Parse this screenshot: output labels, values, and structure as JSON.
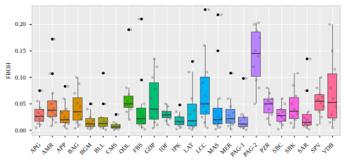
{
  "chart_data": {
    "type": "boxplot",
    "y_label": "FROH",
    "categories": [
      "APG",
      "AMR",
      "APP",
      "BAG",
      "BGM",
      "BLL",
      "CMS",
      "ODL",
      "FBS",
      "GDP",
      "IDF",
      "IPK",
      "LAT",
      "LCC",
      "MAS",
      "MER",
      "PAG-1",
      "PAG-2",
      "PZR",
      "SBC",
      "SBK",
      "SAR",
      "SPV",
      "VDB"
    ],
    "colors": [
      "#F8766D",
      "#F07F4D",
      "#E58700",
      "#D89000",
      "#C99800",
      "#A3A500",
      "#8FAA00",
      "#39B600",
      "#00BA38",
      "#00BF74",
      "#00C08B",
      "#00C0AF",
      "#00BCD8",
      "#00B0F6",
      "#00A5FF",
      "#619CFF",
      "#9590FF",
      "#B983FF",
      "#D376FF",
      "#E76BF3",
      "#F763E0",
      "#FF62BC",
      "#FF6C91",
      "#FF6A98"
    ],
    "values": [
      [
        0.005,
        0.01,
        0.013,
        0.018,
        0.022,
        0.025,
        0.028,
        0.033,
        0.038,
        0.042,
        0.055,
        0.075
      ],
      [
        0.008,
        0.015,
        0.02,
        0.025,
        0.03,
        0.035,
        0.038,
        0.042,
        0.05,
        0.055,
        0.07,
        0.107,
        0.172
      ],
      [
        0.003,
        0.008,
        0.012,
        0.015,
        0.018,
        0.02,
        0.025,
        0.033,
        0.04,
        0.06,
        0.083
      ],
      [
        0.004,
        0.01,
        0.015,
        0.022,
        0.03,
        0.035,
        0.045,
        0.052,
        0.07,
        0.088,
        0.1
      ],
      [
        0.002,
        0.004,
        0.005,
        0.008,
        0.01,
        0.012,
        0.015,
        0.018,
        0.025,
        0.04,
        0.05
      ],
      [
        0.001,
        0.004,
        0.006,
        0.009,
        0.012,
        0.014,
        0.018,
        0.025,
        0.05,
        0.108
      ],
      [
        0.001,
        0.002,
        0.003,
        0.005,
        0.006,
        0.007,
        0.009,
        0.011,
        0.015,
        0.03
      ],
      [
        0.02,
        0.035,
        0.04,
        0.045,
        0.048,
        0.05,
        0.055,
        0.06,
        0.068,
        0.08,
        0.19
      ],
      [
        0.002,
        0.006,
        0.01,
        0.013,
        0.018,
        0.022,
        0.027,
        0.033,
        0.05,
        0.095,
        0.21
      ],
      [
        0.004,
        0.01,
        0.015,
        0.025,
        0.035,
        0.04,
        0.06,
        0.078,
        0.1,
        0.12,
        0.135
      ],
      [
        0.01,
        0.018,
        0.022,
        0.026,
        0.028,
        0.03,
        0.033,
        0.036,
        0.045,
        0.05
      ],
      [
        0.002,
        0.006,
        0.009,
        0.012,
        0.015,
        0.018,
        0.022,
        0.026,
        0.035,
        0.048
      ],
      [
        0.001,
        0.004,
        0.006,
        0.009,
        0.012,
        0.018,
        0.03,
        0.038,
        0.06,
        0.11,
        0.13
      ],
      [
        0.005,
        0.015,
        0.025,
        0.035,
        0.045,
        0.05,
        0.065,
        0.09,
        0.11,
        0.16,
        0.228
      ],
      [
        0.002,
        0.006,
        0.009,
        0.012,
        0.015,
        0.018,
        0.022,
        0.026,
        0.035,
        0.06,
        0.15,
        0.218
      ],
      [
        0.002,
        0.008,
        0.011,
        0.015,
        0.018,
        0.022,
        0.028,
        0.033,
        0.045,
        0.06,
        0.108
      ],
      [
        0.001,
        0.004,
        0.006,
        0.01,
        0.012,
        0.018,
        0.024,
        0.03,
        0.098
      ],
      [
        0.05,
        0.08,
        0.095,
        0.12,
        0.14,
        0.15,
        0.175,
        0.188,
        0.2,
        0.203
      ],
      [
        0.01,
        0.022,
        0.03,
        0.04,
        0.048,
        0.052,
        0.055,
        0.06,
        0.07,
        0.08
      ],
      [
        0.002,
        0.01,
        0.015,
        0.02,
        0.025,
        0.03,
        0.035,
        0.04,
        0.05,
        0.06
      ],
      [
        0.005,
        0.014,
        0.02,
        0.026,
        0.032,
        0.04,
        0.05,
        0.065,
        0.085,
        0.108
      ],
      [
        0.002,
        0.006,
        0.008,
        0.01,
        0.012,
        0.015,
        0.02,
        0.024,
        0.035,
        0.075,
        0.135
      ],
      [
        0.01,
        0.025,
        0.035,
        0.045,
        0.052,
        0.058,
        0.063,
        0.068,
        0.08,
        0.1
      ],
      [
        0.005,
        0.015,
        0.02,
        0.03,
        0.045,
        0.06,
        0.08,
        0.115,
        0.15,
        0.2
      ]
    ],
    "ylim": [
      -0.01,
      0.235
    ],
    "yticks": [
      {
        "value": 0,
        "label": "0.00"
      },
      {
        "value": 0.05,
        "label": "0.05"
      },
      {
        "value": 0.1,
        "label": "0.10"
      },
      {
        "value": 0.15,
        "label": "0.15"
      },
      {
        "value": 0.2,
        "label": "0.20"
      }
    ],
    "grid": true
  }
}
